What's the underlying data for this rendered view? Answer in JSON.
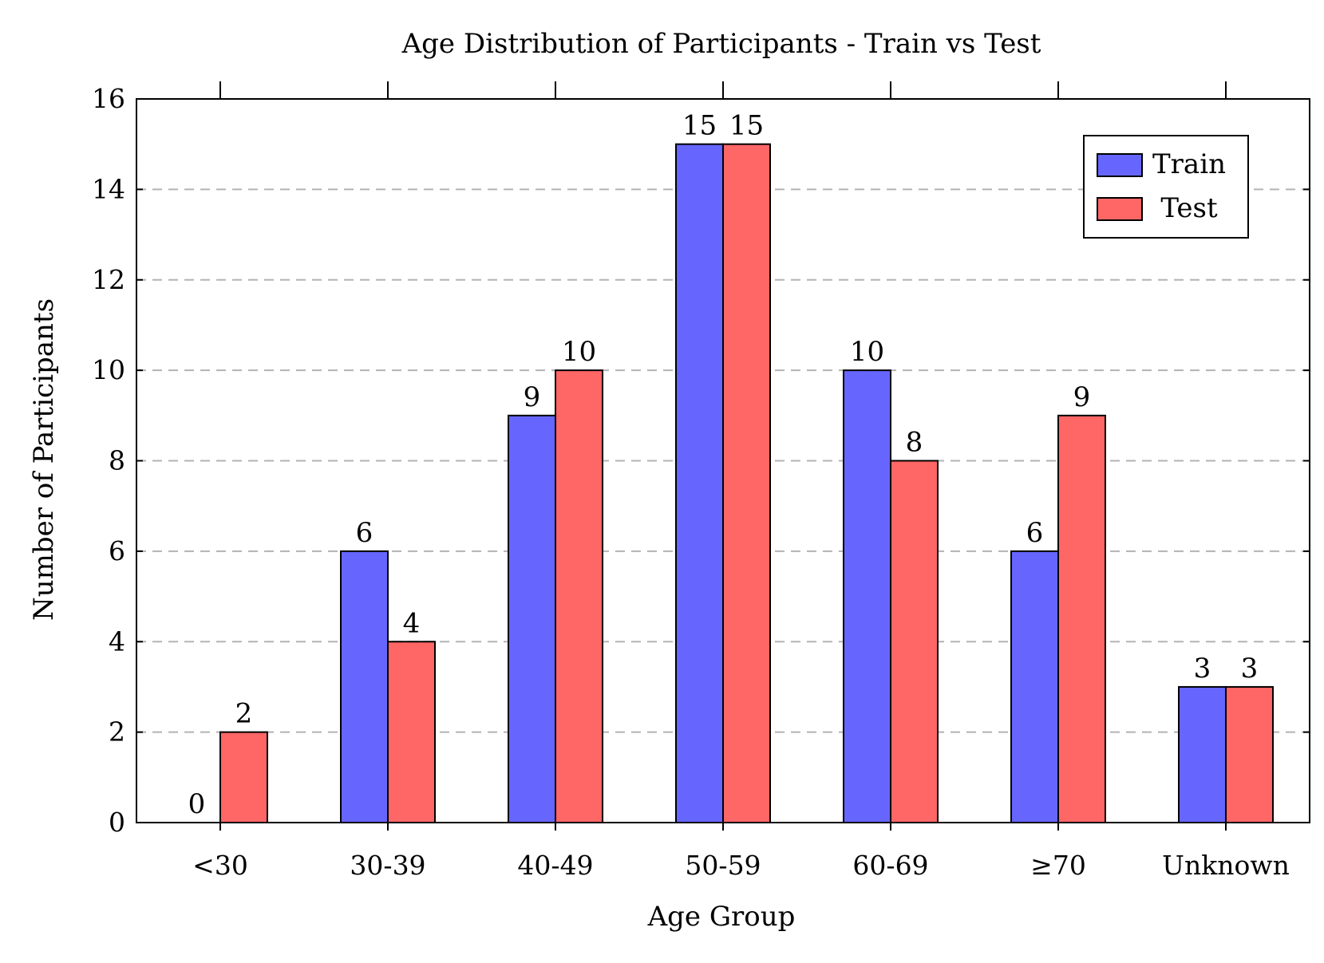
{
  "chart_data": {
    "type": "bar",
    "title": "Age Distribution of Participants - Train vs Test",
    "xlabel": "Age Group",
    "ylabel": "Number of Participants",
    "categories": [
      "<30",
      "30-39",
      "40-49",
      "50-59",
      "60-69",
      "≥70",
      "Unknown"
    ],
    "series": [
      {
        "name": "Train",
        "values": [
          0,
          6,
          9,
          15,
          10,
          6,
          3
        ],
        "color": "#6666ff"
      },
      {
        "name": "Test",
        "values": [
          2,
          4,
          10,
          15,
          8,
          9,
          3
        ],
        "color": "#ff6666"
      }
    ],
    "ylim": [
      0,
      16
    ],
    "yticks": [
      0,
      2,
      4,
      6,
      8,
      10,
      12,
      14,
      16
    ],
    "grid": "horizontal dashed",
    "legend_position": "top-right",
    "data_labels": true
  }
}
